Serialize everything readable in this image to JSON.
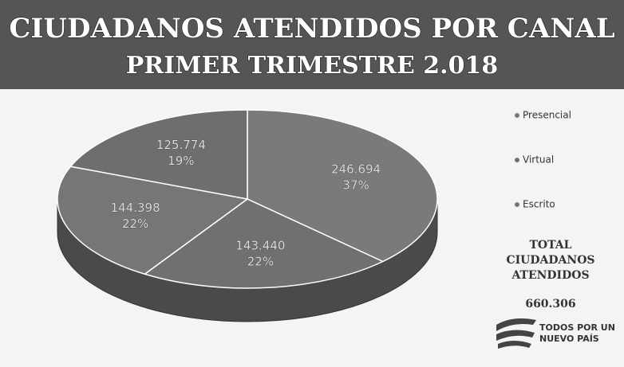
{
  "chart_data": {
    "type": "pie",
    "title": "CIUDADANOS ATENDIDOS POR CANAL",
    "subtitle": "PRIMER TRIMESTRE 2.018",
    "categories": [
      "Presencial",
      "Virtual",
      "Escrito",
      null
    ],
    "values": [
      246694,
      143440,
      144398,
      125774
    ],
    "value_labels": [
      "246.694",
      "143.440",
      "144.398",
      "125.774"
    ],
    "percent_labels": [
      "37%",
      "22%",
      "22%",
      "19%"
    ],
    "colors": [
      "#7a7a7a",
      "#707070",
      "#767676",
      "#6e6e6e"
    ],
    "total_label": [
      "TOTAL",
      "CIUDADANOS",
      "ATENDIDOS"
    ],
    "total_value": "660.306",
    "logo": [
      "TODOS POR UN",
      "NUEVO PAÍS"
    ]
  }
}
